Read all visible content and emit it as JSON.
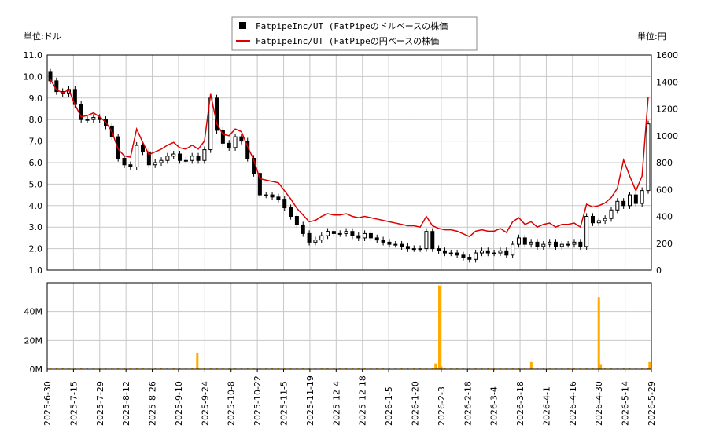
{
  "chart_data": [
    {
      "type": "candlestick+line",
      "title": "",
      "left_unit_label": "単位:ドル",
      "right_unit_label": "単位:円",
      "legend": {
        "placement": "top-center",
        "entries": [
          {
            "label": "FatpipeInc/UT (FatPipeのドルベースの株価",
            "color": "#000000",
            "marker": "square"
          },
          {
            "label": "FatpipeInc/UT (FatPipeの円ベースの株価",
            "color": "#dd0000",
            "marker": "line"
          }
        ]
      },
      "y_left": {
        "range": [
          1.0,
          11.0
        ],
        "ticks": [
          "1.0",
          "2.0",
          "3.0",
          "4.0",
          "5.0",
          "6.0",
          "7.0",
          "8.0",
          "9.0",
          "10.0",
          "11.0"
        ]
      },
      "y_right": {
        "range": [
          0,
          1600
        ],
        "ticks": [
          "0",
          "200",
          "400",
          "600",
          "800",
          "1000",
          "1200",
          "1400",
          "1600"
        ]
      },
      "x_ticks": [
        "2025-6-30",
        "2025-7-15",
        "2025-7-29",
        "2025-8-12",
        "2025-8-26",
        "2025-9-10",
        "2025-9-24",
        "2025-10-8",
        "2025-10-22",
        "2025-11-5",
        "2025-11-19",
        "2025-12-4",
        "2025-12-18",
        "2026-1-5",
        "2026-1-20",
        "2026-2-3",
        "2026-2-18",
        "2026-3-4",
        "2026-3-18",
        "2026-4-1",
        "2026-4-16",
        "2026-4-30",
        "2026-5-14",
        "2026-5-29"
      ],
      "grid": true,
      "usd_price_close": [
        9.8,
        9.3,
        9.2,
        9.4,
        8.7,
        8.0,
        8.0,
        8.1,
        8.0,
        7.7,
        7.2,
        6.2,
        5.9,
        5.8,
        6.8,
        6.5,
        5.9,
        6.0,
        6.1,
        6.3,
        6.4,
        6.1,
        6.1,
        6.3,
        6.1,
        6.6,
        9.0,
        7.5,
        6.9,
        6.7,
        7.2,
        7.0,
        6.2,
        5.5,
        4.5,
        4.5,
        4.4,
        4.3,
        3.9,
        3.5,
        3.1,
        2.7,
        2.3,
        2.4,
        2.6,
        2.8,
        2.7,
        2.7,
        2.8,
        2.6,
        2.5,
        2.7,
        2.5,
        2.4,
        2.3,
        2.2,
        2.2,
        2.1,
        2.0,
        2.0,
        2.0,
        2.8,
        2.0,
        1.9,
        1.8,
        1.8,
        1.7,
        1.6,
        1.5,
        1.8,
        1.9,
        1.8,
        1.8,
        1.9,
        1.7,
        2.2,
        2.5,
        2.2,
        2.3,
        2.1,
        2.2,
        2.3,
        2.1,
        2.2,
        2.2,
        2.3,
        2.1,
        3.5,
        3.2,
        3.3,
        3.4,
        3.8,
        4.2,
        4.0,
        4.5,
        4.1,
        4.7,
        7.8
      ],
      "jpy_price": [
        1420,
        1340,
        1320,
        1340,
        1230,
        1140,
        1150,
        1170,
        1140,
        1100,
        1030,
        900,
        850,
        840,
        1050,
        950,
        860,
        880,
        900,
        930,
        950,
        910,
        900,
        930,
        900,
        960,
        1310,
        1090,
        1010,
        1000,
        1050,
        1030,
        920,
        820,
        680,
        670,
        660,
        650,
        590,
        530,
        460,
        410,
        360,
        370,
        400,
        420,
        410,
        410,
        420,
        400,
        390,
        400,
        390,
        380,
        370,
        360,
        350,
        340,
        330,
        330,
        320,
        400,
        330,
        310,
        300,
        300,
        290,
        270,
        250,
        290,
        300,
        290,
        290,
        310,
        280,
        360,
        390,
        340,
        360,
        320,
        340,
        350,
        320,
        340,
        340,
        350,
        320,
        490,
        470,
        480,
        500,
        540,
        610,
        820,
        700,
        590,
        700,
        1290
      ],
      "volume_axis": {
        "range": [
          0,
          60000000
        ],
        "ticks": [
          "0M",
          "20M",
          "40M"
        ]
      },
      "volume_spikes": [
        {
          "date": "2025-9-20",
          "value": 11000000
        },
        {
          "date": "2026-1-31",
          "value": 4000000
        },
        {
          "date": "2026-2-2",
          "value": 58000000
        },
        {
          "date": "2026-2-3",
          "value": 2000000
        },
        {
          "date": "2026-3-24",
          "value": 5000000
        },
        {
          "date": "2026-4-30",
          "value": 50000000
        },
        {
          "date": "2026-5-1",
          "value": 3000000
        },
        {
          "date": "2026-5-28",
          "value": 5000000
        }
      ],
      "colors": {
        "usd": "#000000",
        "jpy": "#dd0000",
        "volume": "#ffaa00",
        "grid": "#c8c8c8"
      }
    }
  ]
}
